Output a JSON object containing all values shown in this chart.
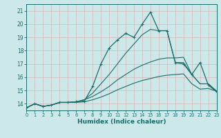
{
  "xlabel": "Humidex (Indice chaleur)",
  "bg_color": "#cce8e8",
  "grid_color": "#c8e0e0",
  "line_color": "#1a6b6b",
  "xlim": [
    0,
    23
  ],
  "ylim": [
    13.5,
    21.5
  ],
  "yticks": [
    14,
    15,
    16,
    17,
    18,
    19,
    20,
    21
  ],
  "xticks": [
    0,
    1,
    2,
    3,
    4,
    5,
    6,
    7,
    8,
    9,
    10,
    11,
    12,
    13,
    14,
    15,
    16,
    17,
    18,
    19,
    20,
    21,
    22,
    23
  ],
  "curve_marked_x": [
    0,
    1,
    2,
    3,
    4,
    5,
    6,
    7,
    8,
    9,
    10,
    11,
    12,
    13,
    14,
    15,
    16,
    17,
    18,
    19,
    20,
    21,
    22,
    23
  ],
  "curve_marked_y": [
    13.7,
    14.0,
    13.8,
    13.9,
    14.1,
    14.1,
    14.15,
    14.2,
    15.3,
    17.0,
    18.2,
    18.8,
    19.3,
    19.0,
    20.0,
    20.9,
    19.5,
    19.5,
    17.1,
    17.0,
    16.2,
    17.1,
    15.4,
    14.9
  ],
  "curve2_x": [
    0,
    1,
    2,
    3,
    4,
    5,
    6,
    7,
    8,
    9,
    10,
    11,
    12,
    13,
    14,
    15,
    16,
    17,
    18,
    19,
    20,
    21,
    22,
    23
  ],
  "curve2_y": [
    13.7,
    14.0,
    13.8,
    13.9,
    14.1,
    14.1,
    14.15,
    14.3,
    14.8,
    15.5,
    16.2,
    17.0,
    17.8,
    18.5,
    19.2,
    19.6,
    19.5,
    19.5,
    17.1,
    17.1,
    16.2,
    15.5,
    15.5,
    14.95
  ],
  "curve3_x": [
    0,
    1,
    2,
    3,
    4,
    5,
    6,
    7,
    8,
    9,
    10,
    11,
    12,
    13,
    14,
    15,
    16,
    17,
    18,
    19,
    20,
    21,
    22,
    23
  ],
  "curve3_y": [
    13.7,
    14.0,
    13.8,
    13.9,
    14.1,
    14.1,
    14.15,
    14.3,
    14.55,
    14.9,
    15.3,
    15.8,
    16.2,
    16.6,
    16.9,
    17.15,
    17.35,
    17.45,
    17.45,
    17.5,
    16.2,
    15.5,
    15.5,
    14.95
  ],
  "curve4_x": [
    0,
    1,
    2,
    3,
    4,
    5,
    6,
    7,
    8,
    9,
    10,
    11,
    12,
    13,
    14,
    15,
    16,
    17,
    18,
    19,
    20,
    21,
    22,
    23
  ],
  "curve4_y": [
    13.7,
    14.0,
    13.8,
    13.9,
    14.1,
    14.1,
    14.1,
    14.15,
    14.3,
    14.5,
    14.75,
    15.05,
    15.3,
    15.55,
    15.75,
    15.9,
    16.05,
    16.15,
    16.2,
    16.25,
    15.5,
    15.1,
    15.15,
    14.95
  ]
}
